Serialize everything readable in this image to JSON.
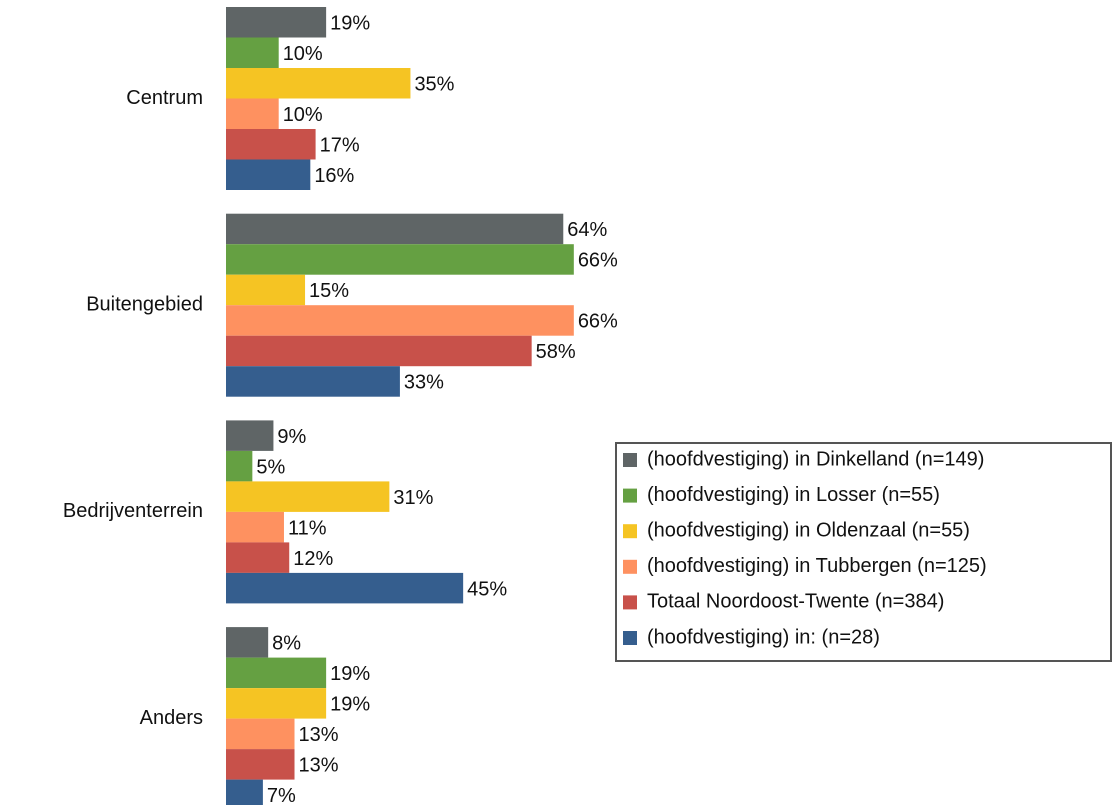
{
  "chart_data": {
    "type": "bar",
    "orientation": "horizontal",
    "categories": [
      "Centrum",
      "Buitengebied",
      "Bedrijventerrein",
      "Anders"
    ],
    "series": [
      {
        "name": "(hoofdvestiging) in Dinkelland (n=149)",
        "color": "#5f6566",
        "values": [
          19,
          64,
          9,
          8
        ],
        "value_labels": [
          "19%",
          "64%",
          "9%",
          "8%"
        ]
      },
      {
        "name": "(hoofdvestiging) in Losser (n=55)",
        "color": "#65a042",
        "values": [
          10,
          66,
          5,
          19
        ],
        "value_labels": [
          "10%",
          "66%",
          "5%",
          "19%"
        ]
      },
      {
        "name": "(hoofdvestiging) in Oldenzaal (n=55)",
        "color": "#f5c423",
        "values": [
          35,
          15,
          31,
          19
        ],
        "value_labels": [
          "35%",
          "15%",
          "31%",
          "19%"
        ]
      },
      {
        "name": "(hoofdvestiging) in Tubbergen (n=125)",
        "color": "#fe9160",
        "values": [
          10,
          66,
          11,
          13
        ],
        "value_labels": [
          "10%",
          "66%",
          "11%",
          "13%"
        ]
      },
      {
        "name": "Totaal Noordoost-Twente (n=384)",
        "color": "#c8514a",
        "values": [
          17,
          58,
          12,
          13
        ],
        "value_labels": [
          "17%",
          "58%",
          "12%",
          "13%"
        ]
      },
      {
        "name": "(hoofdvestiging) in: (n=28)",
        "color": "#355e8e",
        "values": [
          16,
          33,
          45,
          7
        ],
        "value_labels": [
          "16%",
          "33%",
          "45%",
          "7%"
        ]
      }
    ],
    "legend": "right"
  }
}
